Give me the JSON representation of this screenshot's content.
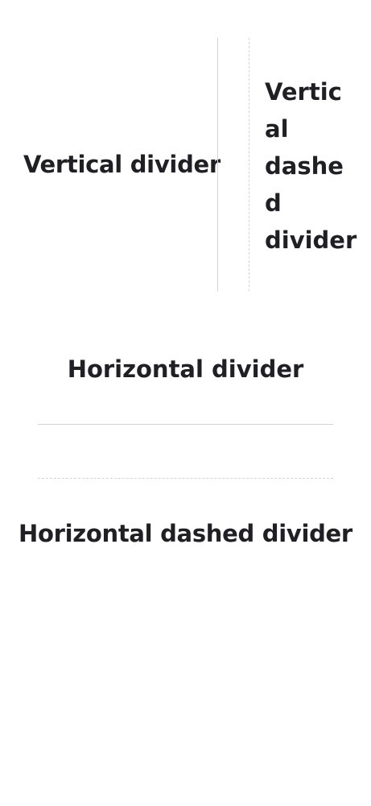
{
  "vertical_divider": {
    "label": "Vertical divider",
    "style": "solid",
    "color": "#d4d4d4"
  },
  "vertical_dashed_divider": {
    "label_lines": [
      "Vertic",
      "al",
      "dashe",
      "d",
      "divider"
    ],
    "style": "dashed",
    "color": "#d4d4d4"
  },
  "horizontal_divider": {
    "label": "Horizontal divider",
    "style": "solid",
    "color": "#d4d4d4"
  },
  "horizontal_dashed_divider": {
    "label": "Horizontal dashed divider",
    "style": "dashed",
    "color": "#d4d4d4"
  },
  "text_color": "#1f1f24"
}
